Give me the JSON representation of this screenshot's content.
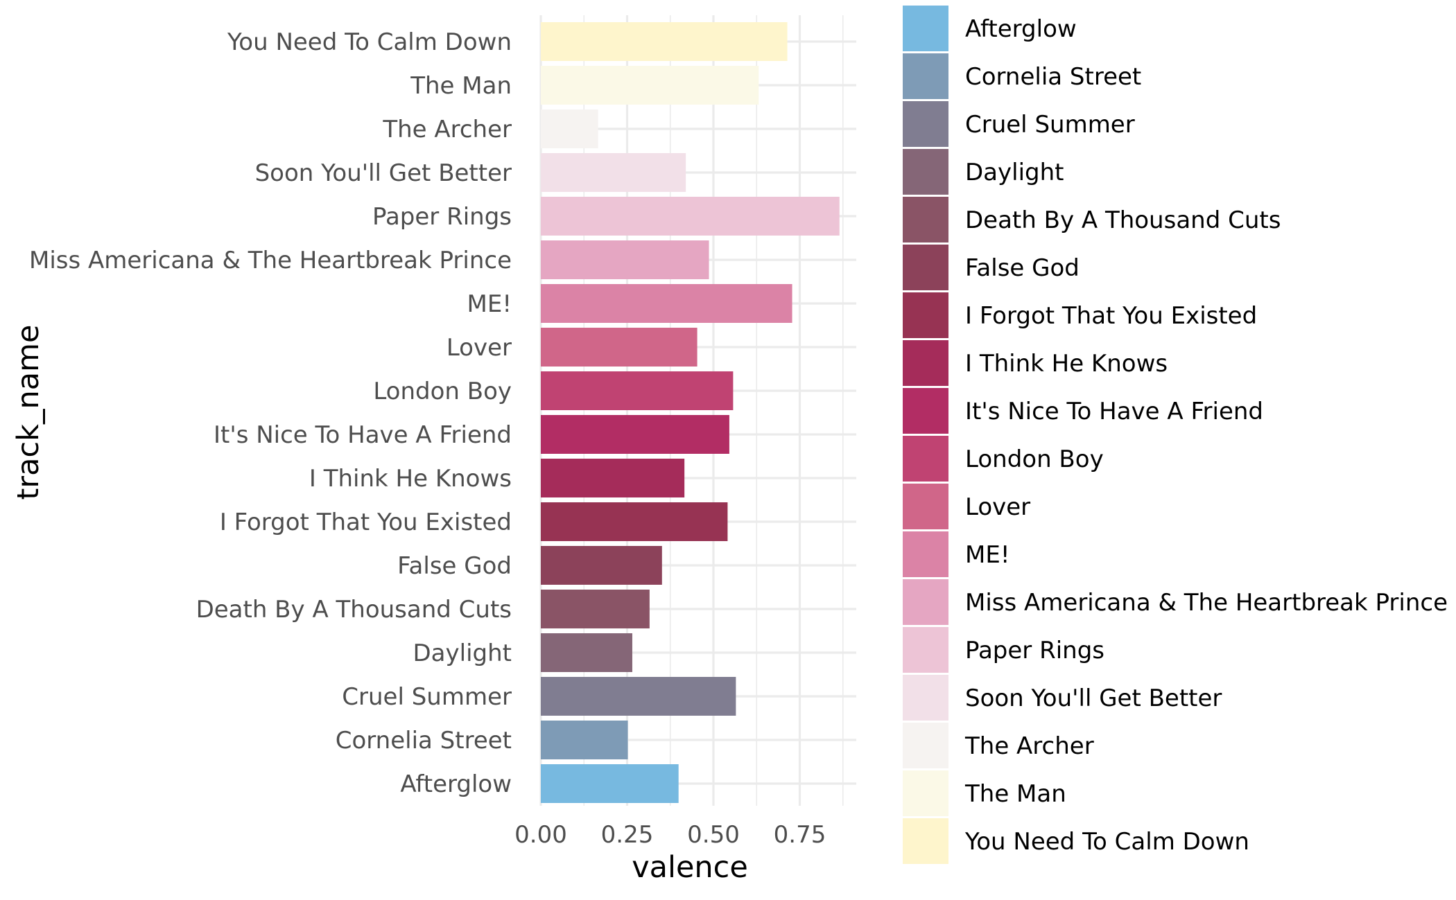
{
  "chart_data": {
    "type": "bar",
    "orientation": "horizontal",
    "xlabel": "valence",
    "ylabel": "track_name",
    "xlim": [
      0,
      0.91
    ],
    "x_ticks": [
      0,
      0.25,
      0.5,
      0.75
    ],
    "x_tick_labels": [
      "0.00",
      "0.25",
      "0.50",
      "0.75"
    ],
    "grid": true,
    "legend_position": "right",
    "categories": [
      "Afterglow",
      "Cornelia Street",
      "Cruel Summer",
      "Daylight",
      "Death By A Thousand Cuts",
      "False God",
      "I Forgot That You Existed",
      "I Think He Knows",
      "It's Nice To Have A Friend",
      "London Boy",
      "Lover",
      "ME!",
      "Miss Americana & The Heartbreak Prince",
      "Paper Rings",
      "Soon You'll Get Better",
      "The Archer",
      "The Man",
      "You Need To Calm Down"
    ],
    "values": [
      0.399,
      0.252,
      0.565,
      0.265,
      0.315,
      0.351,
      0.541,
      0.416,
      0.546,
      0.557,
      0.453,
      0.728,
      0.487,
      0.865,
      0.42,
      0.166,
      0.631,
      0.714
    ],
    "colors": [
      "#77b9e0",
      "#7e9bb6",
      "#807d91",
      "#856677",
      "#8a5466",
      "#8c425a",
      "#973353",
      "#a52c5a",
      "#b22d64",
      "#c04372",
      "#d06689",
      "#db83a6",
      "#e5a6c2",
      "#edc4d6",
      "#f2e0e8",
      "#f6f3f1",
      "#fbf9e7",
      "#fef5cc"
    ]
  }
}
